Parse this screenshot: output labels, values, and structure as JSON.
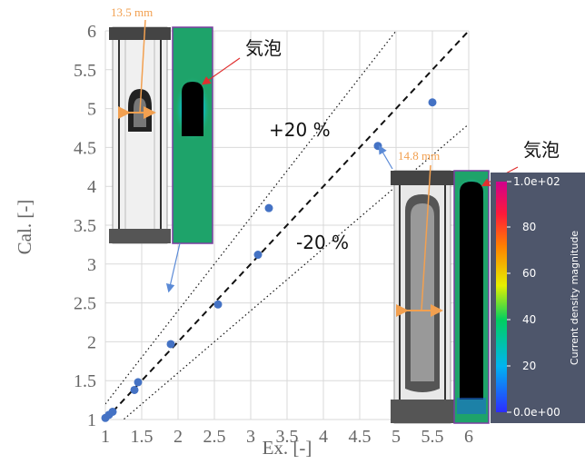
{
  "chart_data": {
    "type": "scatter",
    "xlabel": "Ex. [-]",
    "ylabel": "Cal. [-]",
    "xlim": [
      1,
      6
    ],
    "ylim": [
      1,
      6
    ],
    "x_ticks": [
      "1",
      "1.5",
      "2",
      "2.5",
      "3",
      "3.5",
      "4",
      "4.5",
      "5",
      "5.5",
      "6"
    ],
    "y_ticks": [
      "1",
      "1.5",
      "2",
      "2.5",
      "3",
      "3.5",
      "4",
      "4.5",
      "5",
      "5.5",
      "6"
    ],
    "grid": true,
    "marker_color": "#4472c4",
    "points": [
      {
        "x": 1.0,
        "y": 1.02
      },
      {
        "x": 1.05,
        "y": 1.06
      },
      {
        "x": 1.1,
        "y": 1.1
      },
      {
        "x": 1.4,
        "y": 1.38
      },
      {
        "x": 1.45,
        "y": 1.48
      },
      {
        "x": 1.9,
        "y": 1.97
      },
      {
        "x": 2.55,
        "y": 2.48
      },
      {
        "x": 3.1,
        "y": 3.12
      },
      {
        "x": 3.25,
        "y": 3.72
      },
      {
        "x": 4.75,
        "y": 4.52
      },
      {
        "x": 5.5,
        "y": 5.08
      }
    ],
    "reference_lines": [
      {
        "label": "",
        "slope": 1.0,
        "style": "dashed"
      },
      {
        "label": "+20 %",
        "slope": 1.2,
        "style": "dotted"
      },
      {
        "label": "-20 %",
        "slope": 0.8,
        "style": "dotted"
      }
    ],
    "annotations": {
      "bubble_label_1": "気泡",
      "bubble_label_2": "気泡",
      "size_label_1": "13.5 mm",
      "size_label_2": "14.8 mm"
    },
    "colorbar": {
      "title": "Current density magnitude",
      "max_label": "1.0e+02",
      "min_label": "0.0e+00",
      "ticks": [
        "80",
        "60",
        "40",
        "20"
      ],
      "background": "#4e566b"
    }
  }
}
